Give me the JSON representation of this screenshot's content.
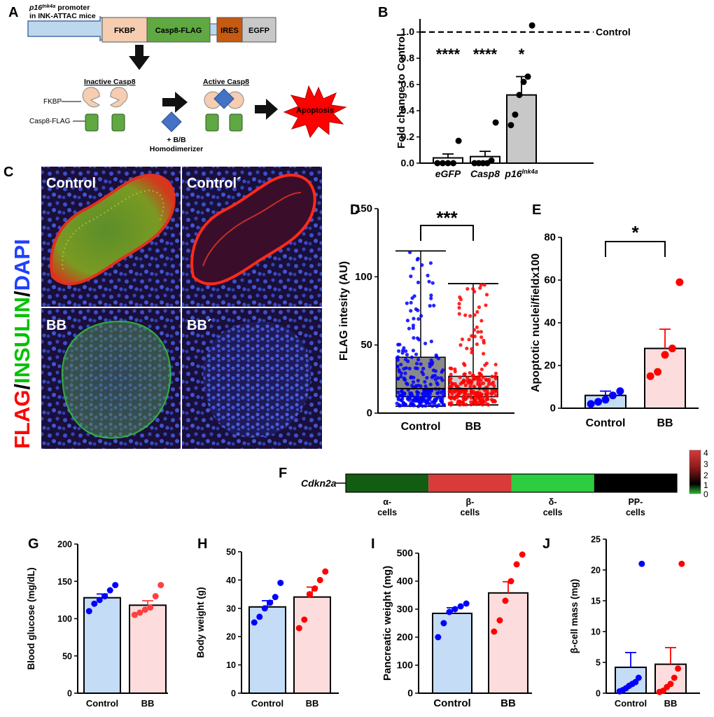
{
  "panel_letters": [
    "A",
    "B",
    "C",
    "D",
    "E",
    "F",
    "G",
    "H",
    "I",
    "J"
  ],
  "panel_a": {
    "promoter_line1": "p16",
    "promoter_sup": "Ink4a",
    "promoter_line1_rest": " promoter",
    "promoter_line2": "in INK-ATTAC mice",
    "box_fkbp": "FKBP",
    "box_casp8": "Casp8-FLAG",
    "box_ires": "IRES",
    "box_egfp": "EGFP",
    "inactive_label": "Inactive Casp8",
    "active_label": "Active Casp8",
    "fkbp_label": "FKBP",
    "casp8_label": "Casp8-FLAG",
    "dimerizer_line1": "+ B/B",
    "dimerizer_line2": "Homodimerizer",
    "apoptosis": "Apoptosis",
    "colors": {
      "fkbp": "#f6cdb0",
      "casp8": "#5fa842",
      "ires": "#c55a11",
      "egfp": "#c8c8c8",
      "promoter": "#bdd7ee",
      "diamond": "#4472c4",
      "burst": "#ff0000"
    }
  },
  "panel_c": {
    "stain_flag": "FLAG",
    "stain_sep1": "/",
    "stain_insulin": "INSULIN",
    "stain_sep2": "/",
    "stain_dapi": "DAPI",
    "tile_labels": [
      "Control",
      "Control´",
      "BB",
      "BB´"
    ]
  },
  "panel_f": {
    "row_label": "Cdkn2a",
    "colorbar_ticks": [
      "4",
      "3",
      "2",
      "1",
      "0"
    ]
  },
  "chart_data": [
    {
      "id": "B",
      "type": "bar",
      "ylabel": "Fold change to Control",
      "ylim": [
        0,
        1.1
      ],
      "yticks": [
        "0.0",
        "0.2",
        "0.4",
        "0.6",
        "0.8",
        "1.0"
      ],
      "categories": [
        "eGFP",
        "Casp8",
        "p16"
      ],
      "category_sup": [
        "",
        "",
        "Ink4a"
      ],
      "values": [
        0.04,
        0.05,
        0.52
      ],
      "errors": [
        0.03,
        0.04,
        0.14
      ],
      "points": [
        [
          0,
          0,
          0,
          0,
          0.17
        ],
        [
          0,
          0,
          0,
          0,
          0.02,
          0.31
        ],
        [
          0.29,
          0.37,
          0.52,
          0.62,
          0.66,
          1.05
        ]
      ],
      "significance": [
        "****",
        "****",
        "*"
      ],
      "reference_line": {
        "y": 1.0,
        "label": "Control"
      },
      "colors": [
        "#ffffff",
        "#ffffff",
        "#c8c8c8"
      ]
    },
    {
      "id": "D",
      "type": "box",
      "ylabel": "FLAG intesity (AU)",
      "ylim": [
        0,
        150
      ],
      "yticks": [
        "0",
        "50",
        "100",
        "150"
      ],
      "categories": [
        "Control",
        "BB"
      ],
      "box": [
        {
          "min": 5,
          "q1": 12,
          "median": 18,
          "q3": 41,
          "max": 119
        },
        {
          "min": 6,
          "q1": 12,
          "median": 18,
          "q3": 27,
          "max": 95
        }
      ],
      "significance": "***",
      "colors": [
        "#0000ff",
        "#ff0000"
      ]
    },
    {
      "id": "E",
      "type": "bar",
      "ylabel": "Apoptotic nuclei/fieldx100",
      "ylim": [
        0,
        80
      ],
      "yticks": [
        "0",
        "20",
        "40",
        "60",
        "80"
      ],
      "categories": [
        "Control",
        "BB"
      ],
      "values": [
        6,
        28
      ],
      "errors": [
        2,
        9
      ],
      "points": [
        [
          2,
          3,
          4,
          6,
          8
        ],
        [
          15,
          17,
          25,
          28,
          59
        ]
      ],
      "significance": "*",
      "colors": [
        "#0000ff",
        "#ff0000"
      ]
    },
    {
      "id": "F",
      "type": "heatmap",
      "categories": [
        "α-\ncells",
        "β-\ncells",
        "δ-\ncells",
        "PP-\ncells"
      ],
      "values": [
        0.3,
        3.5,
        -0.3,
        1.0
      ],
      "range": [
        0,
        4
      ]
    },
    {
      "id": "G",
      "type": "bar",
      "ylabel": "Blood glucose (mg/dL)",
      "ylim": [
        0,
        200
      ],
      "yticks": [
        "0",
        "50",
        "100",
        "150",
        "200"
      ],
      "categories": [
        "Control",
        "BB"
      ],
      "values": [
        128,
        118
      ],
      "errors": [
        5,
        6
      ],
      "points": [
        [
          110,
          120,
          125,
          130,
          138,
          145
        ],
        [
          105,
          108,
          112,
          115,
          130,
          145
        ]
      ],
      "colors": [
        "#0000ff",
        "#ff4040"
      ]
    },
    {
      "id": "H",
      "type": "bar",
      "ylabel": "Body weight (g)",
      "ylim": [
        0,
        50
      ],
      "yticks": [
        "0",
        "10",
        "20",
        "30",
        "40",
        "50"
      ],
      "categories": [
        "Control",
        "BB"
      ],
      "values": [
        30.5,
        34
      ],
      "errors": [
        2.2,
        3.5
      ],
      "points": [
        [
          25,
          27,
          30,
          32,
          34,
          39
        ],
        [
          23,
          26,
          35,
          37,
          40,
          43
        ]
      ],
      "colors": [
        "#0000ff",
        "#ff0000"
      ]
    },
    {
      "id": "I",
      "type": "bar",
      "ylabel": "Pancreatic weight (mg)",
      "ylim": [
        0,
        500
      ],
      "yticks": [
        "0",
        "100",
        "200",
        "300",
        "400",
        "500"
      ],
      "categories": [
        "Control",
        "BB"
      ],
      "values": [
        285,
        358
      ],
      "errors": [
        20,
        40
      ],
      "points": [
        [
          200,
          250,
          290,
          300,
          310,
          320
        ],
        [
          220,
          260,
          330,
          400,
          460,
          495
        ]
      ],
      "colors": [
        "#0000ff",
        "#ff0000"
      ]
    },
    {
      "id": "J",
      "type": "bar",
      "ylabel": "β-cell mass (mg)",
      "ylim": [
        0,
        25
      ],
      "yticks": [
        "0",
        "5",
        "10",
        "15",
        "20",
        "25"
      ],
      "categories": [
        "Control",
        "BB"
      ],
      "values": [
        4.2,
        4.7
      ],
      "errors": [
        2.4,
        2.7
      ],
      "points": [
        [
          0.3,
          0.5,
          0.8,
          1.2,
          1.5,
          1.8,
          2.5,
          21
        ],
        [
          0.2,
          0.4,
          1.0,
          1.5,
          2.5,
          4.0,
          21
        ]
      ],
      "colors": [
        "#0000ff",
        "#ff0000"
      ]
    }
  ]
}
